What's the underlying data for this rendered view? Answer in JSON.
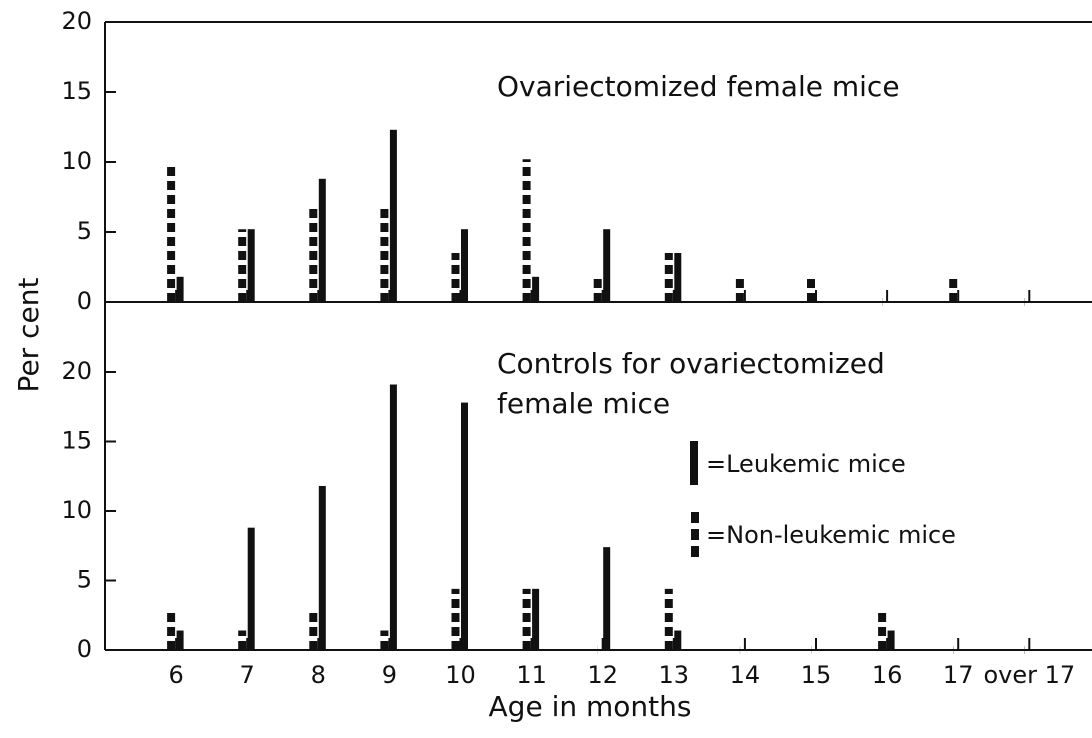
{
  "chart_data": [
    {
      "type": "bar",
      "title": "Ovariectomized female mice",
      "ylabel": "Per cent",
      "ylim": [
        0,
        20
      ],
      "yticks": [
        0,
        5,
        10,
        15,
        20
      ],
      "series": [
        {
          "name": "=Non-leukemic mice",
          "color": "#111111",
          "style": "dashed",
          "values": [
            10,
            5.2,
            6.9,
            6.9,
            3.5,
            10.2,
            1.8,
            3.5,
            1.8,
            1.8,
            0,
            1.8,
            0
          ]
        },
        {
          "name": "=Leukemic mice",
          "color": "#111111",
          "style": "solid",
          "values": [
            1.8,
            5.2,
            8.8,
            12.3,
            5.2,
            1.8,
            5.2,
            3.5,
            0,
            0,
            0,
            0,
            0
          ]
        }
      ]
    },
    {
      "type": "bar",
      "title_lines": [
        "Controls for ovariectomized",
        "female mice"
      ],
      "xlabel": "Age in months",
      "categories": [
        "6",
        "7",
        "8",
        "9",
        "10",
        "11",
        "12",
        "13",
        "14",
        "15",
        "16",
        "17",
        "over 17"
      ],
      "ylim": [
        0,
        20
      ],
      "yticks": [
        0,
        5,
        10,
        15,
        20
      ],
      "series": [
        {
          "name": "=Non-leukemic mice",
          "color": "#111111",
          "style": "dashed",
          "values": [
            2.9,
            1.4,
            2.9,
            1.4,
            4.4,
            4.4,
            0,
            4.4,
            0,
            0,
            2.9,
            0,
            0
          ]
        },
        {
          "name": "=Leukemic mice",
          "color": "#111111",
          "style": "solid",
          "values": [
            1.4,
            8.8,
            11.8,
            19.1,
            17.8,
            4.4,
            7.4,
            1.4,
            0,
            0,
            1.4,
            0,
            0
          ]
        }
      ]
    }
  ]
}
